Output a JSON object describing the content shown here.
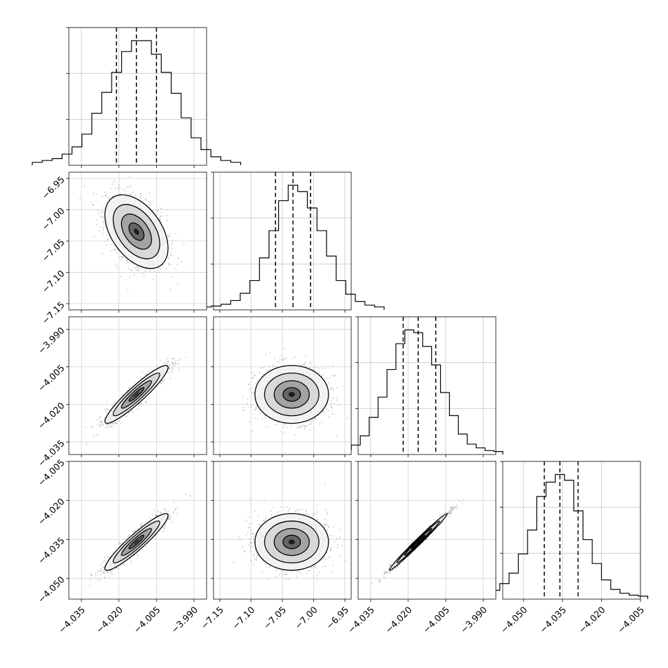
{
  "chart_data": {
    "type": "corner",
    "parameters": 4,
    "quantile_lines": "dashed",
    "grid": true,
    "params": [
      {
        "range": [
          -4.04,
          -3.985
        ],
        "ticks": [
          -4.035,
          -4.02,
          -4.005,
          -3.99
        ],
        "tick_labels": [
          "−4.035",
          "−4.020",
          "−4.005",
          "−3.990"
        ],
        "quantiles": [
          -4.021,
          -4.013,
          -4.005
        ]
      },
      {
        "range": [
          -7.16,
          -6.94
        ],
        "ticks": [
          -7.15,
          -7.1,
          -7.05,
          -7.0,
          -6.95
        ],
        "tick_labels": [
          "−7.15",
          "−7.10",
          "−7.05",
          "−7.00",
          "−6.95"
        ],
        "quantiles": [
          -7.061,
          -7.033,
          -7.005
        ]
      },
      {
        "range": [
          -4.04,
          -3.985
        ],
        "ticks": [
          -4.035,
          -4.02,
          -4.005,
          -3.99
        ],
        "tick_labels": [
          "−4.035",
          "−4.020",
          "−4.005",
          "−3.990"
        ],
        "quantiles": [
          -4.022,
          -4.016,
          -4.009
        ]
      },
      {
        "range": [
          -4.058,
          -4.005
        ],
        "ticks": [
          -4.05,
          -4.035,
          -4.02,
          -4.005
        ],
        "tick_labels": [
          "−4.050",
          "−4.035",
          "−4.020",
          "−4.005"
        ],
        "quantiles": [
          -4.042,
          -4.036,
          -4.029
        ]
      }
    ],
    "histograms": [
      {
        "counts": [
          1,
          3,
          5,
          10,
          18,
          32,
          55,
          78,
          100,
          123,
          135,
          135,
          120,
          100,
          77,
          50,
          28,
          15,
          7,
          3,
          1
        ]
      },
      {
        "counts": [
          1,
          2,
          4,
          8,
          16,
          30,
          55,
          85,
          118,
          135,
          128,
          110,
          85,
          57,
          30,
          15,
          7,
          3,
          1
        ]
      },
      {
        "counts": [
          1,
          3,
          8,
          18,
          38,
          60,
          90,
          118,
          133,
          130,
          115,
          95,
          65,
          40,
          20,
          9,
          5,
          2,
          1
        ]
      },
      {
        "counts": [
          1,
          3,
          7,
          14,
          25,
          45,
          70,
          105,
          120,
          128,
          122,
          90,
          60,
          35,
          18,
          8,
          4,
          2,
          1
        ]
      }
    ],
    "pairs": [
      {
        "x_param": 0,
        "y_param": 1,
        "mean": [
          -4.013,
          -7.035
        ],
        "sd": [
          0.006,
          0.028
        ],
        "corr": -0.45
      },
      {
        "x_param": 0,
        "y_param": 2,
        "mean": [
          -4.013,
          -4.016
        ],
        "sd": [
          0.006,
          0.0055
        ],
        "corr": 0.93
      },
      {
        "x_param": 1,
        "y_param": 2,
        "mean": [
          -7.035,
          -4.016
        ],
        "sd": [
          0.028,
          0.0055
        ],
        "corr": 0.0
      },
      {
        "x_param": 0,
        "y_param": 3,
        "mean": [
          -4.013,
          -4.036
        ],
        "sd": [
          0.006,
          0.0052
        ],
        "corr": 0.93
      },
      {
        "x_param": 1,
        "y_param": 3,
        "mean": [
          -7.035,
          -4.036
        ],
        "sd": [
          0.028,
          0.0052
        ],
        "corr": 0.0
      },
      {
        "x_param": 2,
        "y_param": 3,
        "mean": [
          -4.016,
          -4.036
        ],
        "sd": [
          0.0055,
          0.0052
        ],
        "corr": 0.99
      }
    ]
  }
}
